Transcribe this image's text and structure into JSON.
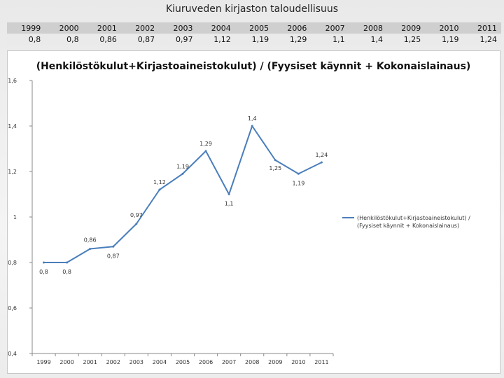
{
  "page_title": "Kiuruveden kirjaston taloudellisuus",
  "table": {
    "years": [
      "1999",
      "2000",
      "2001",
      "2002",
      "2003",
      "2004",
      "2005",
      "2006",
      "2007",
      "2008",
      "2009",
      "2010",
      "2011"
    ],
    "values": [
      "0,8",
      "0,8",
      "0,86",
      "0,87",
      "0,97",
      "1,12",
      "1,19",
      "1,29",
      "1,1",
      "1,4",
      "1,25",
      "1,19",
      "1,24"
    ]
  },
  "chart_data": {
    "type": "line",
    "title": "(Henkilöstökulut+Kirjastoaineistokulut) / (Fyysiset käynnit + Kokonaislainaus)",
    "categories": [
      "1999",
      "2000",
      "2001",
      "2002",
      "2003",
      "2004",
      "2005",
      "2006",
      "2007",
      "2008",
      "2009",
      "2010",
      "2011"
    ],
    "series": [
      {
        "name": "(Henkilöstökulut+Kirjastoaineistokulut) / (Fyysiset käynnit + Kokonaislainaus)",
        "values": [
          0.8,
          0.8,
          0.86,
          0.87,
          0.97,
          1.12,
          1.19,
          1.29,
          1.1,
          1.4,
          1.25,
          1.19,
          1.24
        ],
        "data_labels": [
          "0,8",
          "0,8",
          "0,86",
          "0,87",
          "0,97",
          "1,12",
          "1,19",
          "1,29",
          "1,1",
          "1,4",
          "1,25",
          "1,19",
          "1,24"
        ],
        "color": "#4a7ebb"
      }
    ],
    "ylim": [
      0.4,
      1.6
    ],
    "yticks": [
      0.4,
      0.6,
      0.8,
      1.0,
      1.2,
      1.4,
      1.6
    ],
    "ytick_labels": [
      "0,4",
      "0,6",
      "0,8",
      "1",
      "1,2",
      "1,4",
      "1,6"
    ],
    "legend_position": "right",
    "grid": false
  }
}
